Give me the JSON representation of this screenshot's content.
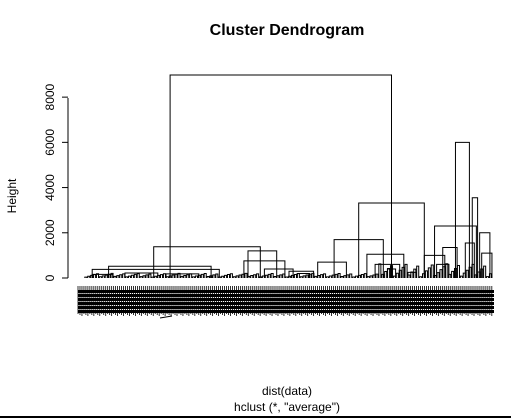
{
  "chart_data": {
    "type": "dendrogram",
    "title": "Cluster Dendrogram",
    "ylabel": "Height",
    "xlabel": "dist(data)",
    "sublabel": "hclust (*, \"average\")",
    "yticks": [
      0,
      2000,
      4000,
      6000,
      8000
    ],
    "ytick_labels": [
      "0",
      "2000",
      "4000",
      "6000",
      "8000"
    ],
    "ylim": [
      0,
      9200
    ],
    "xlim": [
      0,
      100
    ],
    "leaf_count_approx": 400,
    "merges": [
      {
        "x1": 21,
        "x2": 75,
        "h": 8980
      },
      {
        "x1": 67,
        "x2": 83,
        "h": 3320
      },
      {
        "x1": 94,
        "x2": 90.6,
        "h": 6000
      },
      {
        "x1": 17,
        "x2": 43,
        "h": 1380
      },
      {
        "x1": 61,
        "x2": 73,
        "h": 1700
      },
      {
        "x1": 85.5,
        "x2": 95.7,
        "h": 2300
      },
      {
        "x1": 96.5,
        "x2": 99,
        "h": 2000
      },
      {
        "x1": 94.7,
        "x2": 96,
        "h": 3550
      },
      {
        "x1": 2,
        "x2": 33,
        "h": 380
      },
      {
        "x1": 39,
        "x2": 49,
        "h": 760
      },
      {
        "x1": 40,
        "x2": 47,
        "h": 1200
      },
      {
        "x1": 57,
        "x2": 64,
        "h": 700
      },
      {
        "x1": 69,
        "x2": 78,
        "h": 1050
      },
      {
        "x1": 71,
        "x2": 77,
        "h": 600
      },
      {
        "x1": 83,
        "x2": 88,
        "h": 1000
      },
      {
        "x1": 86,
        "x2": 89,
        "h": 600
      },
      {
        "x1": 87.5,
        "x2": 91,
        "h": 1350
      },
      {
        "x1": 93,
        "x2": 95.2,
        "h": 1550
      },
      {
        "x1": 97,
        "x2": 99.5,
        "h": 1100
      },
      {
        "x1": 6,
        "x2": 31,
        "h": 520
      },
      {
        "x1": 10,
        "x2": 18,
        "h": 220
      },
      {
        "x1": 20,
        "x2": 28,
        "h": 180
      },
      {
        "x1": 2,
        "x2": 7,
        "h": 160
      },
      {
        "x1": 44,
        "x2": 51,
        "h": 400
      },
      {
        "x1": 50,
        "x2": 56,
        "h": 300
      },
      {
        "x1": 52,
        "x2": 55,
        "h": 200
      },
      {
        "x1": 74,
        "x2": 76,
        "h": 400
      },
      {
        "x1": 79,
        "x2": 81,
        "h": 250
      }
    ]
  }
}
